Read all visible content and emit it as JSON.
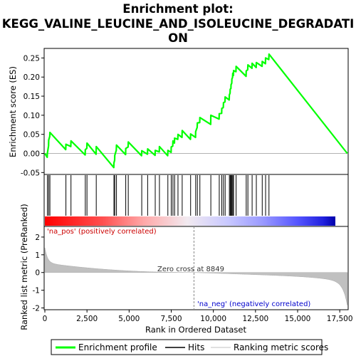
{
  "chart_data": {
    "type": "line",
    "title_line1": "Enrichment plot:",
    "title_line2": "KEGG_VALINE_LEUCINE_AND_ISOLEUCINE_DEGRADATI",
    "title_line3": "ON",
    "xlabel": "Rank in Ordered Dataset",
    "ylabel_top": "Enrichment score (ES)",
    "ylabel_bottom": "Ranked list metric (PreRanked)",
    "xlim": [
      0,
      18000
    ],
    "es_ylim": [
      -0.055,
      0.275
    ],
    "metric_ylim": [
      -2.1,
      2.6
    ],
    "x_ticks": [
      0,
      2500,
      5000,
      7500,
      10000,
      12500,
      15000,
      17500
    ],
    "x_tick_labels": [
      "0",
      "2,500",
      "5,000",
      "7,500",
      "10,000",
      "12,500",
      "15,000",
      "17,500"
    ],
    "es_ticks": [
      -0.05,
      0.0,
      0.05,
      0.1,
      0.15,
      0.2,
      0.25
    ],
    "es_tick_labels": [
      "-0.05",
      "0.00",
      "0.05",
      "0.10",
      "0.15",
      "0.20",
      "0.25"
    ],
    "metric_ticks": [
      -2,
      -1,
      0,
      1,
      2
    ],
    "metric_tick_labels": [
      "-2",
      "-1",
      "0",
      "1",
      "2"
    ],
    "label_pos": "'na_pos' (positively correlated)",
    "label_neg": "'na_neg' (negatively correlated)",
    "zero_cross_label": "Zero cross at 8849",
    "zero_cross": 8849,
    "n_genes": 17950,
    "hits": [
      150,
      230,
      300,
      1250,
      1550,
      2400,
      2500,
      3050,
      4100,
      4150,
      4250,
      4800,
      4950,
      5750,
      6100,
      6550,
      6800,
      7300,
      7500,
      7600,
      7700,
      7900,
      8150,
      8650,
      8950,
      9050,
      9200,
      9850,
      10350,
      10500,
      10600,
      10700,
      10950,
      11000,
      11050,
      11100,
      11150,
      11200,
      11350,
      11950,
      12050,
      12300,
      12550,
      12900,
      13100,
      13300
    ],
    "series": [
      {
        "name": "Enrichment profile",
        "color": "#00ff00",
        "x": [
          0,
          140,
          150,
          220,
          230,
          290,
          300,
          1240,
          1250,
          1540,
          1550,
          2390,
          2400,
          2490,
          2500,
          3040,
          3050,
          4090,
          4100,
          4140,
          4150,
          4240,
          4250,
          4790,
          4800,
          4940,
          4950,
          5740,
          5750,
          6090,
          6100,
          6540,
          6550,
          6790,
          6800,
          7290,
          7300,
          7490,
          7500,
          7590,
          7600,
          7690,
          7700,
          7890,
          7900,
          8140,
          8150,
          8640,
          8650,
          8940,
          8950,
          9040,
          9050,
          9190,
          9200,
          9840,
          9850,
          10340,
          10350,
          10490,
          10500,
          10590,
          10600,
          10690,
          10700,
          10940,
          10950,
          10990,
          11000,
          11040,
          11050,
          11090,
          11100,
          11140,
          11150,
          11190,
          11200,
          11340,
          11350,
          11940,
          11950,
          12040,
          12050,
          12290,
          12300,
          12540,
          12550,
          12890,
          12900,
          13090,
          13100,
          13290,
          13300,
          17950
        ],
        "y": [
          0.0,
          -0.01,
          0.0,
          0.02,
          0.035,
          0.045,
          0.055,
          0.01,
          0.024,
          0.018,
          0.033,
          -0.004,
          0.01,
          0.013,
          0.027,
          -0.002,
          0.018,
          -0.037,
          -0.025,
          -0.018,
          -0.005,
          0.008,
          0.022,
          -0.003,
          0.013,
          0.017,
          0.03,
          -0.006,
          0.007,
          -0.002,
          0.012,
          -0.005,
          0.008,
          0.004,
          0.018,
          -0.006,
          0.008,
          0.003,
          0.017,
          0.019,
          0.033,
          0.027,
          0.04,
          0.037,
          0.05,
          0.042,
          0.06,
          0.037,
          0.051,
          0.042,
          0.057,
          0.068,
          0.08,
          0.081,
          0.094,
          0.076,
          0.1,
          0.09,
          0.104,
          0.105,
          0.118,
          0.12,
          0.133,
          0.135,
          0.148,
          0.14,
          0.153,
          0.158,
          0.168,
          0.17,
          0.18,
          0.184,
          0.195,
          0.199,
          0.21,
          0.204,
          0.217,
          0.214,
          0.228,
          0.202,
          0.216,
          0.219,
          0.232,
          0.223,
          0.236,
          0.225,
          0.238,
          0.228,
          0.241,
          0.235,
          0.25,
          0.246,
          0.26,
          0.0
        ]
      }
    ],
    "legend": [
      {
        "label": "Enrichment profile",
        "color": "#00ff00"
      },
      {
        "label": "Hits",
        "color": "#000000"
      },
      {
        "label": "Ranking metric scores",
        "color": "#c0c0c0"
      }
    ]
  }
}
